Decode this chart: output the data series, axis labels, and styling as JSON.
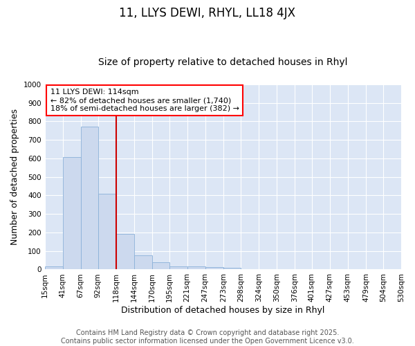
{
  "title": "11, LLYS DEWI, RHYL, LL18 4JX",
  "subtitle": "Size of property relative to detached houses in Rhyl",
  "xlabel": "Distribution of detached houses by size in Rhyl",
  "ylabel": "Number of detached properties",
  "bins": [
    15,
    41,
    67,
    92,
    118,
    144,
    170,
    195,
    221,
    247,
    273,
    298,
    324,
    350,
    376,
    401,
    427,
    453,
    479,
    504,
    530
  ],
  "values": [
    15,
    608,
    770,
    410,
    192,
    75,
    38,
    18,
    15,
    13,
    8,
    0,
    0,
    0,
    0,
    0,
    0,
    0,
    0,
    0
  ],
  "bar_color": "#ccd9ee",
  "bar_edge_color": "#8ab0d8",
  "vline_x": 118,
  "vline_color": "#cc0000",
  "ylim": [
    0,
    1000
  ],
  "yticks": [
    0,
    100,
    200,
    300,
    400,
    500,
    600,
    700,
    800,
    900,
    1000
  ],
  "annotation_title": "11 LLYS DEWI: 114sqm",
  "annotation_line2": "← 82% of detached houses are smaller (1,740)",
  "annotation_line3": "18% of semi-detached houses are larger (382) →",
  "bg_color": "#dce6f5",
  "plot_bg_color": "#dce6f5",
  "fig_bg_color": "#ffffff",
  "grid_color": "#ffffff",
  "footer_text": "Contains HM Land Registry data © Crown copyright and database right 2025.\nContains public sector information licensed under the Open Government Licence v3.0.",
  "title_fontsize": 12,
  "subtitle_fontsize": 10,
  "axis_label_fontsize": 9,
  "tick_fontsize": 7.5,
  "footer_fontsize": 7,
  "annotation_fontsize": 8
}
